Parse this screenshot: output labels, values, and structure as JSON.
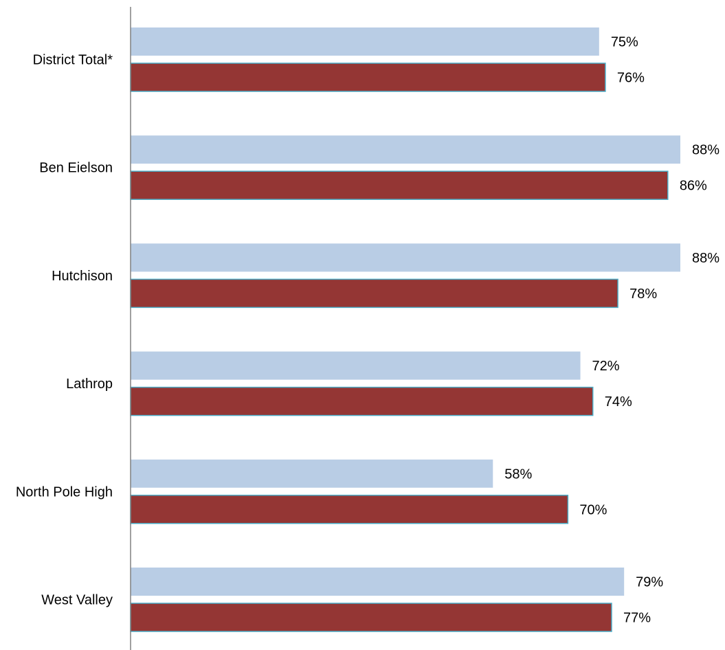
{
  "chart_data": {
    "type": "bar",
    "orientation": "horizontal",
    "categories": [
      "District Total*",
      "Ben Eielson",
      "Hutchison",
      "Lathrop",
      "North Pole High",
      "West Valley"
    ],
    "series": [
      {
        "color": "#b9cde5",
        "values": [
          75,
          88,
          88,
          72,
          58,
          79
        ],
        "labels": [
          "75%",
          "88%",
          "88%",
          "72%",
          "58%",
          "79%"
        ]
      },
      {
        "color": "#943634",
        "border_color": "#4bacc6",
        "values": [
          76,
          86,
          78,
          74,
          70,
          77
        ],
        "labels": [
          "76%",
          "86%",
          "78%",
          "74%",
          "70%",
          "77%"
        ]
      }
    ],
    "xlim": [
      0,
      88
    ],
    "grid": false,
    "legend": "none",
    "axis_color": "#808080"
  }
}
